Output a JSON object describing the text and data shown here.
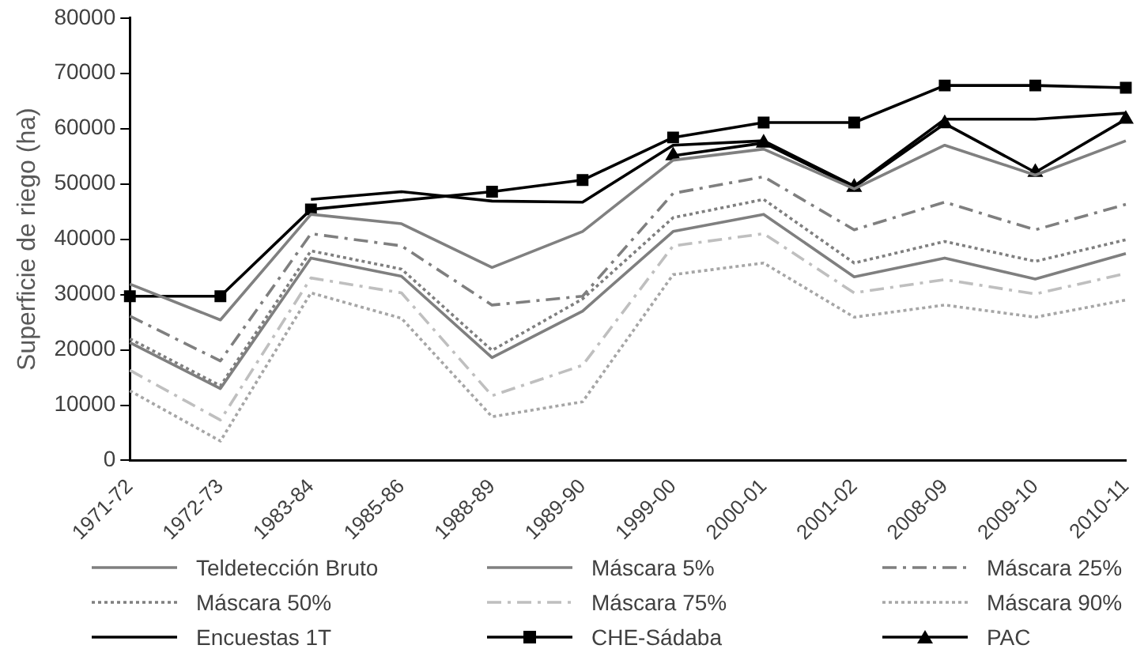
{
  "chart_data": {
    "type": "line",
    "ylabel": "Superficie de riego (ha)",
    "categories": [
      "1971-72",
      "1972-73",
      "1983-84",
      "1985-86",
      "1988-89",
      "1989-90",
      "1999-00",
      "2000-01",
      "2001-02",
      "2008-09",
      "2009-10",
      "2010-11"
    ],
    "ylim": [
      0,
      80000
    ],
    "yticks": [
      0,
      10000,
      20000,
      30000,
      40000,
      50000,
      60000,
      70000,
      80000
    ],
    "grid": false,
    "legend": "bottom",
    "series": [
      {
        "name": "Teldetección Bruto",
        "color": "#7f7f7f",
        "line_style": "solid",
        "marker": "none",
        "values": [
          21300,
          13000,
          36600,
          33300,
          18600,
          27000,
          41400,
          44500,
          33200,
          36600,
          32800,
          37400
        ]
      },
      {
        "name": "Máscara 5%",
        "color": "#808080",
        "line_style": "solid",
        "marker": "none",
        "values": [
          31900,
          25400,
          44500,
          42800,
          34900,
          41400,
          54300,
          56300,
          49100,
          57000,
          51600,
          57800
        ]
      },
      {
        "name": "Máscara 25%",
        "color": "#7f7f7f",
        "line_style": "dashed",
        "marker": "none",
        "values": [
          26100,
          18000,
          41000,
          38800,
          28100,
          29700,
          48300,
          51300,
          41700,
          46700,
          41700,
          46300
        ]
      },
      {
        "name": "Máscara 50%",
        "color": "#7f7f7f",
        "line_style": "dotted",
        "marker": "none",
        "values": [
          22000,
          13500,
          37900,
          34600,
          19900,
          29200,
          43900,
          47200,
          35700,
          39600,
          36000,
          39900
        ]
      },
      {
        "name": "Máscara 75%",
        "color": "#bfbfbf",
        "line_style": "dashed",
        "marker": "none",
        "values": [
          16300,
          7300,
          33000,
          30300,
          11700,
          17200,
          38800,
          41000,
          30300,
          32700,
          30100,
          33800
        ]
      },
      {
        "name": "Máscara 90%",
        "color": "#a6a6a6",
        "line_style": "dotted",
        "marker": "none",
        "values": [
          12600,
          3500,
          30300,
          25700,
          7900,
          10600,
          33600,
          35700,
          25900,
          28100,
          25900,
          29000
        ]
      },
      {
        "name": "Encuestas 1T",
        "color": "#000000",
        "line_style": "solid",
        "marker": "none",
        "values": [
          null,
          null,
          47200,
          48600,
          46900,
          46700,
          57000,
          57800,
          49600,
          61700,
          61700,
          62800
        ]
      },
      {
        "name": "CHE-Sádaba",
        "color": "#000000",
        "line_style": "solid",
        "marker": "square",
        "values": [
          29700,
          29700,
          45400,
          null,
          48600,
          50700,
          58400,
          61100,
          61100,
          67800,
          67800,
          67400
        ]
      },
      {
        "name": "PAC",
        "color": "#000000",
        "line_style": "solid",
        "marker": "triangle",
        "values": [
          null,
          null,
          null,
          null,
          null,
          null,
          55100,
          57400,
          49400,
          60900,
          52100,
          61700
        ]
      }
    ]
  }
}
